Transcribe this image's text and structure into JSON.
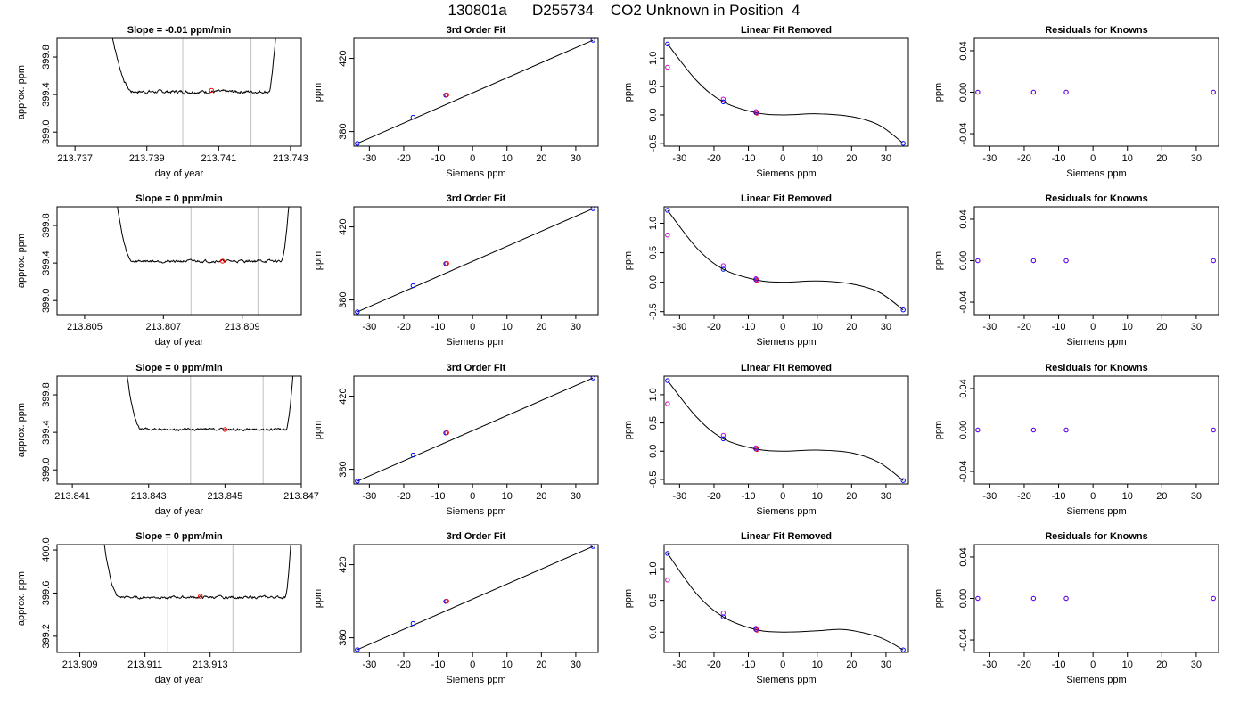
{
  "title": "130801a      D255734    CO2 Unknown in Position  4",
  "colors": {
    "trace": "#000000",
    "vline": "#c0c0c0",
    "point_blue": "#0000ff",
    "point_magenta": "#cc00cc",
    "point_red": "#ff0000",
    "fit_line": "#000000"
  },
  "chart_data": [
    {
      "type": "line",
      "title": "Slope =  -0.01  ppm/min",
      "xlabel": "day of year",
      "ylabel": "approx. ppm",
      "xlim": [
        213.7365,
        213.7433
      ],
      "ylim": [
        398.85,
        400.0
      ],
      "xticks": [
        213.737,
        213.739,
        213.741,
        213.743
      ],
      "xtick_labels": [
        "213.737",
        "213.739",
        "213.741",
        "213.743"
      ],
      "yticks": [
        399.0,
        399.4,
        399.8
      ],
      "ytick_labels": [
        "399.0",
        "399.4",
        "399.8"
      ],
      "vlines": [
        213.74,
        213.7419
      ],
      "red_point": [
        213.7408,
        399.445
      ],
      "trace": {
        "x_start": 213.738,
        "x_end": 213.7426,
        "rise_in_end": 213.7386,
        "rise_out_start": 213.7424,
        "baseline": 399.43,
        "top": 400.1,
        "noise": 0.012
      }
    },
    {
      "type": "scatter",
      "title": "3rd Order Fit",
      "xlabel": "Siemens ppm",
      "ylabel": "ppm",
      "xlim": [
        -34.5,
        36.5
      ],
      "ylim": [
        372,
        431
      ],
      "xticks": [
        -30,
        -20,
        -10,
        0,
        10,
        20,
        30
      ],
      "xtick_labels": [
        "-30",
        "-20",
        "-10",
        "0",
        "10",
        "20",
        "30"
      ],
      "yticks": [
        380,
        420
      ],
      "ytick_labels": [
        "380",
        "420"
      ],
      "line": [
        [
          -33.5,
          373.5
        ],
        [
          35,
          430
        ]
      ],
      "points_blue": [
        [
          -33.5,
          373.5
        ],
        [
          -17.3,
          387.8
        ],
        [
          -7.8,
          399.9
        ],
        [
          35,
          430
        ]
      ],
      "points_red": [
        [
          -7.5,
          400.0
        ]
      ]
    },
    {
      "type": "scatter",
      "title": "Linear Fit Removed",
      "xlabel": "Siemens ppm",
      "ylabel": "ppm",
      "xlim": [
        -34.5,
        36.5
      ],
      "ylim": [
        -0.55,
        1.35
      ],
      "xticks": [
        -30,
        -20,
        -10,
        0,
        10,
        20,
        30
      ],
      "xtick_labels": [
        "-30",
        "-20",
        "-10",
        "0",
        "10",
        "20",
        "30"
      ],
      "yticks": [
        -0.5,
        0.0,
        0.5,
        1.0
      ],
      "ytick_labels": [
        "-0.5",
        "0.0",
        "0.5",
        "1.0"
      ],
      "curve": [
        [
          -33.5,
          1.25
        ],
        [
          -25,
          0.6
        ],
        [
          -17.3,
          0.23
        ],
        [
          -7.8,
          0.04
        ],
        [
          0,
          0.0
        ],
        [
          10,
          0.02
        ],
        [
          20,
          -0.03
        ],
        [
          28,
          -0.18
        ],
        [
          35,
          -0.5
        ]
      ],
      "points_blue": [
        [
          -33.5,
          1.25
        ],
        [
          -17.3,
          0.23
        ],
        [
          -7.8,
          0.04
        ],
        [
          35,
          -0.5
        ]
      ],
      "points_magenta": [
        [
          -33.5,
          0.84
        ],
        [
          -17.3,
          0.28
        ],
        [
          -7.8,
          0.06
        ]
      ],
      "points_red": [
        [
          -7.5,
          0.03
        ]
      ]
    },
    {
      "type": "scatter",
      "title": "Residuals for Knowns",
      "xlabel": "Siemens ppm",
      "ylabel": "ppm",
      "xlim": [
        -34.5,
        36.5
      ],
      "ylim": [
        -0.052,
        0.052
      ],
      "xticks": [
        -30,
        -20,
        -10,
        0,
        10,
        20,
        30
      ],
      "xtick_labels": [
        "-30",
        "-20",
        "-10",
        "0",
        "10",
        "20",
        "30"
      ],
      "yticks": [
        -0.04,
        0.0,
        0.04
      ],
      "ytick_labels": [
        "-0.04",
        "0.00",
        "0.04"
      ],
      "points_overlap": [
        [
          -33.5,
          0.0
        ],
        [
          -17.3,
          0.0
        ],
        [
          -7.8,
          0.0
        ],
        [
          35,
          0.0
        ]
      ]
    },
    {
      "type": "line",
      "title": "Slope =  0  ppm/min",
      "xlabel": "day of year",
      "ylabel": "approx. ppm",
      "xlim": [
        213.8043,
        213.8105
      ],
      "ylim": [
        398.85,
        400.0
      ],
      "xticks": [
        213.805,
        213.807,
        213.809
      ],
      "xtick_labels": [
        "213.805",
        "213.807",
        "213.809"
      ],
      "vlines": [
        213.8077,
        213.8094
      ],
      "yticks": [
        399.0,
        399.4,
        399.8
      ],
      "ytick_labels": [
        "399.0",
        "399.4",
        "399.8"
      ],
      "red_point": [
        213.8085,
        399.42
      ],
      "trace": {
        "x_start": 213.8058,
        "x_end": 213.8102,
        "rise_in_end": 213.8062,
        "rise_out_start": 213.81,
        "baseline": 399.42,
        "top": 400.1,
        "noise": 0.01
      }
    },
    {
      "type": "scatter",
      "title": "3rd Order Fit",
      "xlabel": "Siemens ppm",
      "ylabel": "ppm",
      "xlim": [
        -34.5,
        36.5
      ],
      "ylim": [
        372,
        431
      ],
      "xticks": [
        -30,
        -20,
        -10,
        0,
        10,
        20,
        30
      ],
      "xtick_labels": [
        "-30",
        "-20",
        "-10",
        "0",
        "10",
        "20",
        "30"
      ],
      "yticks": [
        380,
        420
      ],
      "ytick_labels": [
        "380",
        "420"
      ],
      "line": [
        [
          -33.5,
          373.5
        ],
        [
          35,
          430
        ]
      ],
      "points_blue": [
        [
          -33.5,
          373.5
        ],
        [
          -17.3,
          387.8
        ],
        [
          -7.8,
          399.9
        ],
        [
          35,
          430
        ]
      ],
      "points_red": [
        [
          -7.5,
          400.0
        ]
      ]
    },
    {
      "type": "scatter",
      "title": "Linear Fit Removed",
      "xlabel": "Siemens ppm",
      "ylabel": "ppm",
      "xlim": [
        -34.5,
        36.5
      ],
      "ylim": [
        -0.55,
        1.28
      ],
      "xticks": [
        -30,
        -20,
        -10,
        0,
        10,
        20,
        30
      ],
      "xtick_labels": [
        "-30",
        "-20",
        "-10",
        "0",
        "10",
        "20",
        "30"
      ],
      "yticks": [
        -0.5,
        0.0,
        0.5,
        1.0
      ],
      "ytick_labels": [
        "-0.5",
        "0.0",
        "0.5",
        "1.0"
      ],
      "curve": [
        [
          -33.5,
          1.22
        ],
        [
          -25,
          0.58
        ],
        [
          -17.3,
          0.22
        ],
        [
          -7.8,
          0.04
        ],
        [
          0,
          0.0
        ],
        [
          10,
          0.02
        ],
        [
          20,
          -0.03
        ],
        [
          28,
          -0.17
        ],
        [
          35,
          -0.47
        ]
      ],
      "points_blue": [
        [
          -33.5,
          1.22
        ],
        [
          -17.3,
          0.22
        ],
        [
          -7.8,
          0.04
        ],
        [
          35,
          -0.47
        ]
      ],
      "points_magenta": [
        [
          -33.5,
          0.8
        ],
        [
          -17.3,
          0.28
        ],
        [
          -7.8,
          0.06
        ]
      ],
      "points_red": [
        [
          -7.5,
          0.03
        ]
      ]
    },
    {
      "type": "scatter",
      "title": "Residuals for Knowns",
      "xlabel": "Siemens ppm",
      "ylabel": "ppm",
      "xlim": [
        -34.5,
        36.5
      ],
      "ylim": [
        -0.052,
        0.052
      ],
      "xticks": [
        -30,
        -20,
        -10,
        0,
        10,
        20,
        30
      ],
      "xtick_labels": [
        "-30",
        "-20",
        "-10",
        "0",
        "10",
        "20",
        "30"
      ],
      "yticks": [
        -0.04,
        0.0,
        0.04
      ],
      "ytick_labels": [
        "-0.04",
        "0.00",
        "0.04"
      ],
      "points_overlap": [
        [
          -33.5,
          0.0
        ],
        [
          -17.3,
          0.0
        ],
        [
          -7.8,
          0.0
        ],
        [
          35,
          0.0
        ]
      ]
    },
    {
      "type": "line",
      "title": "Slope =  0  ppm/min",
      "xlabel": "day of year",
      "ylabel": "approx. ppm",
      "xlim": [
        213.8406,
        213.847
      ],
      "ylim": [
        398.85,
        400.0
      ],
      "xticks": [
        213.841,
        213.843,
        213.845,
        213.847
      ],
      "xtick_labels": [
        "213.841",
        "213.843",
        "213.845",
        "213.847"
      ],
      "vlines": [
        213.8441,
        213.846
      ],
      "yticks": [
        399.0,
        399.4,
        399.8
      ],
      "ytick_labels": [
        "399.0",
        "399.4",
        "399.8"
      ],
      "red_point": [
        213.845,
        399.43
      ],
      "trace": {
        "x_start": 213.8424,
        "x_end": 213.8468,
        "rise_in_end": 213.8428,
        "rise_out_start": 213.8466,
        "baseline": 399.43,
        "top": 400.1,
        "noise": 0.009
      }
    },
    {
      "type": "scatter",
      "title": "3rd Order Fit",
      "xlabel": "Siemens ppm",
      "ylabel": "ppm",
      "xlim": [
        -34.5,
        36.5
      ],
      "ylim": [
        372,
        431
      ],
      "xticks": [
        -30,
        -20,
        -10,
        0,
        10,
        20,
        30
      ],
      "xtick_labels": [
        "-30",
        "-20",
        "-10",
        "0",
        "10",
        "20",
        "30"
      ],
      "yticks": [
        380,
        420
      ],
      "ytick_labels": [
        "380",
        "420"
      ],
      "line": [
        [
          -33.5,
          373.5
        ],
        [
          35,
          430
        ]
      ],
      "points_blue": [
        [
          -33.5,
          373.5
        ],
        [
          -17.3,
          387.8
        ],
        [
          -7.8,
          399.9
        ],
        [
          35,
          430
        ]
      ],
      "points_red": [
        [
          -7.5,
          400.0
        ]
      ]
    },
    {
      "type": "scatter",
      "title": "Linear Fit Removed",
      "xlabel": "Siemens ppm",
      "ylabel": "ppm",
      "xlim": [
        -34.5,
        36.5
      ],
      "ylim": [
        -0.58,
        1.33
      ],
      "xticks": [
        -30,
        -20,
        -10,
        0,
        10,
        20,
        30
      ],
      "xtick_labels": [
        "-30",
        "-20",
        "-10",
        "0",
        "10",
        "20",
        "30"
      ],
      "yticks": [
        -0.5,
        0.0,
        0.5,
        1.0
      ],
      "ytick_labels": [
        "-0.5",
        "0.0",
        "0.5",
        "1.0"
      ],
      "curve": [
        [
          -33.5,
          1.25
        ],
        [
          -25,
          0.6
        ],
        [
          -17.3,
          0.22
        ],
        [
          -7.8,
          0.04
        ],
        [
          0,
          0.0
        ],
        [
          10,
          0.02
        ],
        [
          20,
          -0.03
        ],
        [
          28,
          -0.2
        ],
        [
          35,
          -0.52
        ]
      ],
      "points_blue": [
        [
          -33.5,
          1.25
        ],
        [
          -17.3,
          0.22
        ],
        [
          -7.8,
          0.04
        ],
        [
          35,
          -0.52
        ]
      ],
      "points_magenta": [
        [
          -33.5,
          0.84
        ],
        [
          -17.3,
          0.28
        ],
        [
          -7.8,
          0.06
        ]
      ],
      "points_red": [
        [
          -7.5,
          0.03
        ]
      ]
    },
    {
      "type": "scatter",
      "title": "Residuals for Knowns",
      "xlabel": "Siemens ppm",
      "ylabel": "ppm",
      "xlim": [
        -34.5,
        36.5
      ],
      "ylim": [
        -0.052,
        0.052
      ],
      "xticks": [
        -30,
        -20,
        -10,
        0,
        10,
        20,
        30
      ],
      "xtick_labels": [
        "-30",
        "-20",
        "-10",
        "0",
        "10",
        "20",
        "30"
      ],
      "yticks": [
        -0.04,
        0.0,
        0.04
      ],
      "ytick_labels": [
        "-0.04",
        "0.00",
        "0.04"
      ],
      "points_overlap": [
        [
          -33.5,
          0.0
        ],
        [
          -17.3,
          0.0
        ],
        [
          -7.8,
          0.0
        ],
        [
          35,
          0.0
        ]
      ]
    },
    {
      "type": "line",
      "title": "Slope =  0  ppm/min",
      "xlabel": "day of year",
      "ylabel": "approx. ppm",
      "xlim": [
        213.9083,
        213.9158
      ],
      "ylim": [
        399.05,
        400.05
      ],
      "xticks": [
        213.909,
        213.911,
        213.913
      ],
      "xtick_labels": [
        "213.909",
        "213.911",
        "213.913"
      ],
      "vlines": [
        213.9117,
        213.9137
      ],
      "yticks": [
        399.2,
        399.6,
        400.0
      ],
      "ytick_labels": [
        "399.2",
        "399.6",
        "400.0"
      ],
      "red_point": [
        213.9127,
        399.57
      ],
      "trace": {
        "x_start": 213.9097,
        "x_end": 213.9155,
        "rise_in_end": 213.9102,
        "rise_out_start": 213.9153,
        "baseline": 399.56,
        "top": 400.15,
        "noise": 0.009
      }
    },
    {
      "type": "scatter",
      "title": "3rd Order Fit",
      "xlabel": "Siemens ppm",
      "ylabel": "ppm",
      "xlim": [
        -34.5,
        36.5
      ],
      "ylim": [
        372,
        431
      ],
      "xticks": [
        -30,
        -20,
        -10,
        0,
        10,
        20,
        30
      ],
      "xtick_labels": [
        "-30",
        "-20",
        "-10",
        "0",
        "10",
        "20",
        "30"
      ],
      "yticks": [
        380,
        420
      ],
      "ytick_labels": [
        "380",
        "420"
      ],
      "line": [
        [
          -33.5,
          373.5
        ],
        [
          35,
          430
        ]
      ],
      "points_blue": [
        [
          -33.5,
          373.5
        ],
        [
          -17.3,
          387.8
        ],
        [
          -7.8,
          399.9
        ],
        [
          35,
          430
        ]
      ],
      "points_red": [
        [
          -7.5,
          400.0
        ]
      ]
    },
    {
      "type": "scatter",
      "title": "Linear Fit Removed",
      "xlabel": "Siemens ppm",
      "ylabel": "ppm",
      "xlim": [
        -34.5,
        36.5
      ],
      "ylim": [
        -0.32,
        1.38
      ],
      "xticks": [
        -30,
        -20,
        -10,
        0,
        10,
        20,
        30
      ],
      "xtick_labels": [
        "-30",
        "-20",
        "-10",
        "0",
        "10",
        "20",
        "30"
      ],
      "yticks": [
        0.0,
        0.5,
        1.0
      ],
      "ytick_labels": [
        "0.0",
        "0.5",
        "1.0"
      ],
      "curve": [
        [
          -33.5,
          1.24
        ],
        [
          -25,
          0.6
        ],
        [
          -17.3,
          0.24
        ],
        [
          -7.8,
          0.04
        ],
        [
          0,
          0.0
        ],
        [
          10,
          0.02
        ],
        [
          18,
          0.04
        ],
        [
          28,
          -0.08
        ],
        [
          35,
          -0.28
        ]
      ],
      "points_blue": [
        [
          -33.5,
          1.24
        ],
        [
          -17.3,
          0.24
        ],
        [
          -7.8,
          0.04
        ],
        [
          35,
          -0.28
        ]
      ],
      "points_magenta": [
        [
          -33.5,
          0.82
        ],
        [
          -17.3,
          0.3
        ],
        [
          -7.8,
          0.06
        ]
      ],
      "points_red": [
        [
          -7.5,
          0.03
        ]
      ]
    },
    {
      "type": "scatter",
      "title": "Residuals for Knowns",
      "xlabel": "Siemens ppm",
      "ylabel": "ppm",
      "xlim": [
        -34.5,
        36.5
      ],
      "ylim": [
        -0.052,
        0.052
      ],
      "xticks": [
        -30,
        -20,
        -10,
        0,
        10,
        20,
        30
      ],
      "xtick_labels": [
        "-30",
        "-20",
        "-10",
        "0",
        "10",
        "20",
        "30"
      ],
      "yticks": [
        -0.04,
        0.0,
        0.04
      ],
      "ytick_labels": [
        "-0.04",
        "0.00",
        "0.04"
      ],
      "points_overlap": [
        [
          -33.5,
          0.0
        ],
        [
          -17.3,
          0.0
        ],
        [
          -7.8,
          0.0
        ],
        [
          35,
          0.0
        ]
      ]
    }
  ]
}
